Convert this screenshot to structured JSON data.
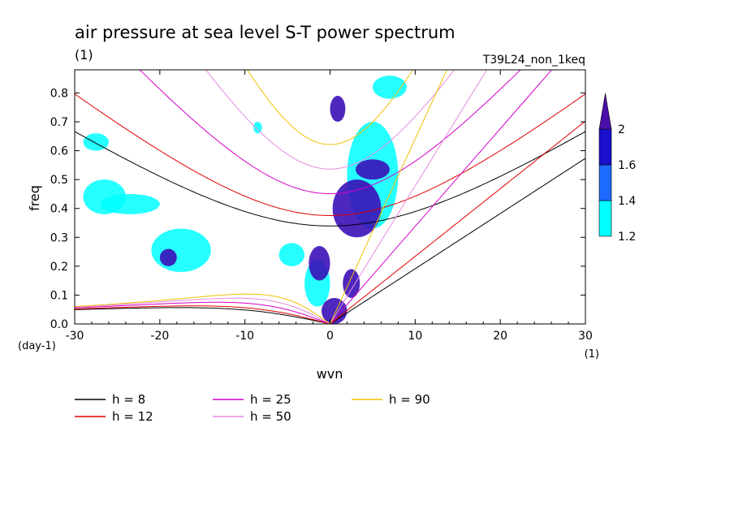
{
  "chart_data": {
    "type": "heatmap",
    "title": "air pressure at sea level S-T power spectrum",
    "subtitle_left": "(1)",
    "subtitle_right": "T39L24_non_1keq",
    "xlabel": "wvn",
    "ylabel": "freq",
    "x_unit": "(1)",
    "y_unit": "(day-1)",
    "xlim": [
      -30,
      30
    ],
    "ylim": [
      0,
      0.88
    ],
    "x_ticks": [
      -30,
      -20,
      -10,
      0,
      10,
      20,
      30
    ],
    "y_ticks": [
      0,
      0.1,
      0.2,
      0.3,
      0.4,
      0.5,
      0.6,
      0.7,
      0.8
    ],
    "x_tick_labels": [
      "-30",
      "-20",
      "-10",
      "0",
      "10",
      "20",
      "30"
    ],
    "y_tick_labels": [
      "0.0",
      "0.1",
      "0.2",
      "0.3",
      "0.4",
      "0.5",
      "0.6",
      "0.7",
      "0.8"
    ],
    "colorbar": {
      "levels": [
        1.2,
        1.4,
        1.6,
        2
      ],
      "labels": [
        "1.2",
        "1.4",
        "1.6",
        "2"
      ],
      "colors": [
        "#00ffff",
        "#1e6bff",
        "#1a0fcc",
        "#4a0eaa"
      ]
    },
    "shaded_regions": [
      {
        "level": 1.2,
        "x": [
          -29,
          -24
        ],
        "y": [
          0.38,
          0.5
        ]
      },
      {
        "level": 1.2,
        "x": [
          -27,
          -20
        ],
        "y": [
          0.38,
          0.45
        ]
      },
      {
        "level": 1.2,
        "x": [
          -21,
          -14
        ],
        "y": [
          0.18,
          0.33
        ]
      },
      {
        "level": 1.2,
        "x": [
          -29,
          -26
        ],
        "y": [
          0.6,
          0.66
        ]
      },
      {
        "level": 1.2,
        "x": [
          -6,
          -3
        ],
        "y": [
          0.2,
          0.28
        ]
      },
      {
        "level": 1.2,
        "x": [
          -3,
          0
        ],
        "y": [
          0.06,
          0.22
        ]
      },
      {
        "level": 1.2,
        "x": [
          2,
          8
        ],
        "y": [
          0.33,
          0.7
        ]
      },
      {
        "level": 1.2,
        "x": [
          5,
          9
        ],
        "y": [
          0.78,
          0.86
        ]
      },
      {
        "level": 1.2,
        "x": [
          -9,
          -8
        ],
        "y": [
          0.66,
          0.7
        ]
      },
      {
        "level": 1.6,
        "x": [
          -20,
          -18
        ],
        "y": [
          0.2,
          0.26
        ]
      },
      {
        "level": 1.6,
        "x": [
          0,
          1.8
        ],
        "y": [
          0.7,
          0.79
        ]
      },
      {
        "level": 1.6,
        "x": [
          0.3,
          6
        ],
        "y": [
          0.3,
          0.5
        ]
      },
      {
        "level": 1.6,
        "x": [
          3,
          7
        ],
        "y": [
          0.5,
          0.57
        ]
      },
      {
        "level": 1.6,
        "x": [
          -2.5,
          0
        ],
        "y": [
          0.15,
          0.27
        ]
      },
      {
        "level": 1.6,
        "x": [
          -1,
          2
        ],
        "y": [
          0.0,
          0.09
        ]
      },
      {
        "level": 1.6,
        "x": [
          1.5,
          3.5
        ],
        "y": [
          0.09,
          0.19
        ]
      }
    ],
    "dispersion_curves": [
      {
        "name": "h =  8",
        "color": "#000000"
      },
      {
        "name": "h = 12",
        "color": "#e00000"
      },
      {
        "name": "h = 25",
        "color": "#d400c8"
      },
      {
        "name": "h = 50",
        "color": "#e48be0"
      },
      {
        "name": "h = 90",
        "color": "#f0c000"
      }
    ],
    "legend_position": "bottom-left",
    "grid": false
  }
}
